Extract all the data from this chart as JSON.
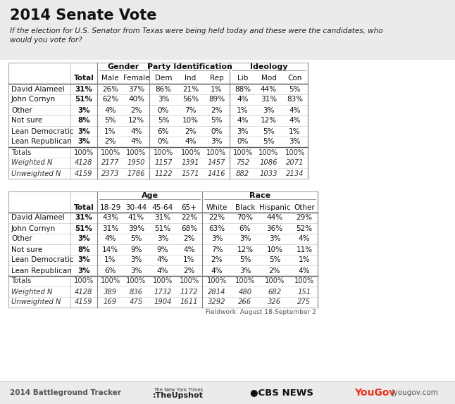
{
  "title": "2014 Senate Vote",
  "subtitle_line1": "If the election for U.S. Senator from Texas were being held today and these were the candidates, who",
  "subtitle_line2": "would you vote for?",
  "footer_left": "2014 Battleground Tracker",
  "footer_fieldwork": "Fieldwork: August 18-September 2",
  "bg_color": "#ebebeb",
  "white_color": "#ffffff",
  "table1_rows": [
    {
      "label": "David Alameel",
      "values": [
        "31%",
        "26%",
        "37%",
        "86%",
        "21%",
        "1%",
        "88%",
        "44%",
        "5%"
      ]
    },
    {
      "label": "John Cornyn",
      "values": [
        "51%",
        "62%",
        "40%",
        "3%",
        "56%",
        "89%",
        "4%",
        "31%",
        "83%"
      ]
    },
    {
      "label": "Other",
      "values": [
        "3%",
        "4%",
        "2%",
        "0%",
        "7%",
        "2%",
        "1%",
        "3%",
        "4%"
      ]
    },
    {
      "label": "Not sure",
      "values": [
        "8%",
        "5%",
        "12%",
        "5%",
        "10%",
        "5%",
        "4%",
        "12%",
        "4%"
      ]
    },
    {
      "label": "Lean Democratic",
      "values": [
        "3%",
        "1%",
        "4%",
        "6%",
        "2%",
        "0%",
        "3%",
        "5%",
        "1%"
      ]
    },
    {
      "label": "Lean Republican",
      "values": [
        "3%",
        "2%",
        "4%",
        "0%",
        "4%",
        "3%",
        "0%",
        "5%",
        "3%"
      ]
    }
  ],
  "table1_footer": [
    {
      "label": "Totals",
      "italic": false,
      "values": [
        "100%",
        "100%",
        "100%",
        "100%",
        "100%",
        "100%",
        "100%",
        "100%",
        "100%"
      ]
    },
    {
      "label": "Weighted N",
      "italic": true,
      "values": [
        "4128",
        "2177",
        "1950",
        "1157",
        "1391",
        "1457",
        "752",
        "1086",
        "2071"
      ]
    },
    {
      "label": "Unweighted N",
      "italic": true,
      "values": [
        "4159",
        "2373",
        "1786",
        "1122",
        "1571",
        "1416",
        "882",
        "1033",
        "2134"
      ]
    }
  ],
  "table1_groups": [
    {
      "label": "",
      "start": 0,
      "end": 1
    },
    {
      "label": "Gender",
      "start": 1,
      "end": 3
    },
    {
      "label": "Party Identification",
      "start": 3,
      "end": 6
    },
    {
      "label": "Ideology",
      "start": 6,
      "end": 9
    }
  ],
  "table1_subcols": [
    "Total",
    "Male",
    "Female",
    "Dem",
    "Ind",
    "Rep",
    "Lib",
    "Mod",
    "Con"
  ],
  "table2_rows": [
    {
      "label": "David Alameel",
      "values": [
        "31%",
        "43%",
        "41%",
        "31%",
        "22%",
        "22%",
        "70%",
        "44%",
        "29%"
      ]
    },
    {
      "label": "John Cornyn",
      "values": [
        "51%",
        "31%",
        "39%",
        "51%",
        "68%",
        "63%",
        "6%",
        "36%",
        "52%"
      ]
    },
    {
      "label": "Other",
      "values": [
        "3%",
        "4%",
        "5%",
        "3%",
        "2%",
        "3%",
        "3%",
        "3%",
        "4%"
      ]
    },
    {
      "label": "Not sure",
      "values": [
        "8%",
        "14%",
        "9%",
        "9%",
        "4%",
        "7%",
        "12%",
        "10%",
        "11%"
      ]
    },
    {
      "label": "Lean Democratic",
      "values": [
        "3%",
        "1%",
        "3%",
        "4%",
        "1%",
        "2%",
        "5%",
        "5%",
        "1%"
      ]
    },
    {
      "label": "Lean Republican",
      "values": [
        "3%",
        "6%",
        "3%",
        "4%",
        "2%",
        "4%",
        "3%",
        "2%",
        "4%"
      ]
    }
  ],
  "table2_footer": [
    {
      "label": "Totals",
      "italic": false,
      "values": [
        "100%",
        "100%",
        "100%",
        "100%",
        "100%",
        "100%",
        "100%",
        "100%",
        "100%"
      ]
    },
    {
      "label": "Weighted N",
      "italic": true,
      "values": [
        "4128",
        "389",
        "836",
        "1732",
        "1172",
        "2814",
        "480",
        "682",
        "151"
      ]
    },
    {
      "label": "Unweighted N",
      "italic": true,
      "values": [
        "4159",
        "169",
        "475",
        "1904",
        "1611",
        "3292",
        "266",
        "326",
        "275"
      ]
    }
  ],
  "table2_groups": [
    {
      "label": "",
      "start": 0,
      "end": 1
    },
    {
      "label": "Age",
      "start": 1,
      "end": 5
    },
    {
      "label": "Race",
      "start": 5,
      "end": 9
    }
  ],
  "table2_subcols": [
    "Total",
    "18-29",
    "30-44",
    "45-64",
    "65+",
    "White",
    "Black",
    "Hispanic",
    "Other"
  ]
}
